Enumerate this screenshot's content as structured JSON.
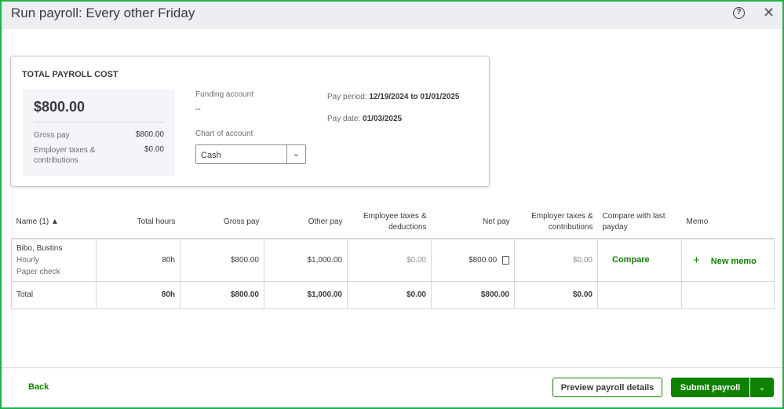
{
  "header": {
    "title": "Run payroll: Every other Friday",
    "help_icon": "?",
    "close_icon": "✕"
  },
  "summary": {
    "title": "TOTAL PAYROLL COST",
    "total": "$800.00",
    "gross_label": "Gross pay",
    "gross_value": "$800.00",
    "employer_label": "Employer taxes & contributions",
    "employer_value": "$0.00",
    "funding_label": "Funding account",
    "funding_value": "--",
    "chart_label": "Chart of account",
    "chart_value": "Cash",
    "period_label": "Pay period:",
    "period_value": "12/19/2024 to 01/01/2025",
    "date_label": "Pay date:",
    "date_value": "01/03/2025"
  },
  "table": {
    "headers": [
      "Name (1) ▲",
      "Total hours",
      "Gross pay",
      "Other pay",
      "Employee taxes & deductions",
      "Net pay",
      "Employer taxes & contributions",
      "Compare with last payday",
      "Memo"
    ],
    "row": {
      "name": "Bibo, Bustins",
      "type": "Hourly",
      "method": "Paper check",
      "hours": "80h",
      "gross": "$800.00",
      "other": "$1,000.00",
      "emp_tax": "$0.00",
      "net": "$800.00",
      "employer_tax": "$0.00",
      "compare": "Compare",
      "memo": "New memo"
    },
    "total": {
      "label": "Total",
      "hours": "80h",
      "gross": "$800.00",
      "other": "$1,000.00",
      "emp_tax": "$0.00",
      "net": "$800.00",
      "employer_tax": "$0.00"
    }
  },
  "footer": {
    "back": "Back",
    "preview": "Preview payroll details",
    "submit": "Submit payroll"
  },
  "colors": {
    "accent": "#108000",
    "frame": "#22b14c"
  }
}
